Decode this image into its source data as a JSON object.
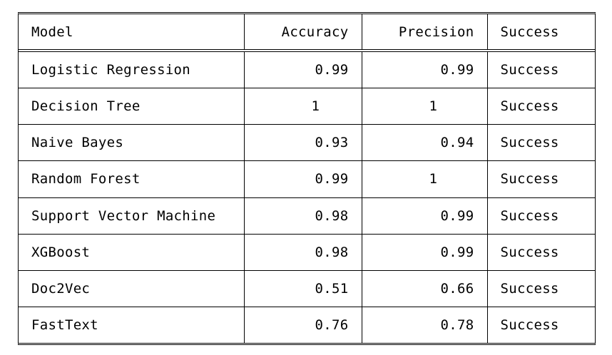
{
  "chart_data": {
    "type": "table",
    "columns": [
      "Model",
      "Accuracy",
      "Precision",
      "Success"
    ],
    "rows": [
      [
        "Logistic Regression",
        "0.99",
        "0.99",
        "Success"
      ],
      [
        "Decision Tree",
        "1",
        "1",
        "Success"
      ],
      [
        "Naive Bayes",
        "0.93",
        "0.94",
        "Success"
      ],
      [
        "Random Forest",
        "0.99",
        "1",
        "Success"
      ],
      [
        "Support Vector Machine",
        "0.98",
        "0.99",
        "Success"
      ],
      [
        "XGBoost",
        "0.98",
        "0.99",
        "Success"
      ],
      [
        "Doc2Vec",
        "0.51",
        "0.66",
        "Success"
      ],
      [
        "FastText",
        "0.76",
        "0.78",
        "Success"
      ]
    ]
  }
}
